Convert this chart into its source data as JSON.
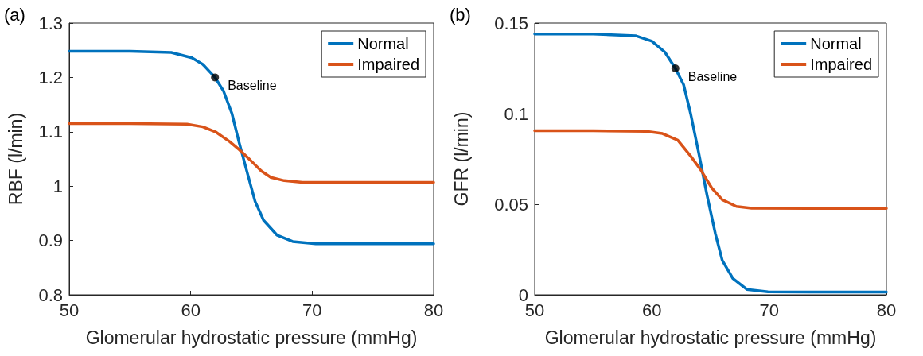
{
  "chart_data": [
    {
      "type": "line",
      "title": "(a)",
      "xlabel": "Glomerular hydrostatic pressure (mmHg)",
      "ylabel": "RBF (l/min)",
      "xlim": [
        50,
        80
      ],
      "xticks": [
        50,
        60,
        70,
        80
      ],
      "ylim": [
        0.8,
        1.3
      ],
      "yticks": [
        0.8,
        0.9,
        1,
        1.1,
        1.2,
        1.3
      ],
      "grid": false,
      "legend": "top right",
      "marker": "none",
      "series": [
        {
          "name": "Normal",
          "color": "#0072bd",
          "x": [
            50,
            55,
            58.4,
            60.1,
            61,
            62,
            62.7,
            63.4,
            64,
            64.7,
            65.3,
            66,
            67.1,
            68.4,
            70.3,
            75,
            80
          ],
          "values": [
            1.248,
            1.248,
            1.246,
            1.236,
            1.224,
            1.2,
            1.175,
            1.133,
            1.079,
            1.021,
            0.972,
            0.937,
            0.91,
            0.898,
            0.894,
            0.894,
            0.894
          ]
        },
        {
          "name": "Impaired",
          "color": "#d95319",
          "x": [
            50,
            55,
            59.7,
            61,
            62.1,
            63.2,
            64,
            64.9,
            65.8,
            66.6,
            67.7,
            69.2,
            75,
            80
          ],
          "values": [
            1.115,
            1.115,
            1.114,
            1.109,
            1.099,
            1.082,
            1.067,
            1.048,
            1.028,
            1.016,
            1.01,
            1.007,
            1.007,
            1.007
          ]
        },
        {
          "type": "scatter",
          "marker": "circle",
          "color": "#000000",
          "x": [
            62
          ],
          "values": [
            1.2
          ]
        }
      ],
      "annotations": [
        {
          "text": "Baseline",
          "x": 62,
          "y": 1.2
        }
      ]
    },
    {
      "type": "line",
      "title": "(b)",
      "xlabel": "Glomerular hydrostatic pressure (mmHg)",
      "ylabel": "GFR (l/min)",
      "xlim": [
        50,
        80
      ],
      "xticks": [
        50,
        60,
        70,
        80
      ],
      "ylim": [
        0,
        0.15
      ],
      "yticks": [
        0,
        0.05,
        0.1,
        0.15
      ],
      "grid": false,
      "legend": "top right",
      "marker": "none",
      "series": [
        {
          "name": "Normal",
          "color": "#0072bd",
          "x": [
            50,
            55,
            58.6,
            60,
            61.1,
            62,
            62.7,
            63.3,
            64,
            64.7,
            65.4,
            66,
            66.9,
            68.1,
            69.9,
            75,
            80
          ],
          "values": [
            0.144,
            0.144,
            0.143,
            0.14,
            0.134,
            0.125,
            0.116,
            0.1,
            0.078,
            0.055,
            0.034,
            0.019,
            0.009,
            0.003,
            0.0016,
            0.0015,
            0.0015
          ]
        },
        {
          "name": "Impaired",
          "color": "#d95319",
          "x": [
            50,
            55,
            59.5,
            60.9,
            62.2,
            63.3,
            64.2,
            65.1,
            66,
            67.2,
            68.5,
            75,
            80
          ],
          "values": [
            0.0906,
            0.0906,
            0.0902,
            0.089,
            0.0854,
            0.0766,
            0.0686,
            0.059,
            0.0525,
            0.0488,
            0.0478,
            0.0477,
            0.0477
          ]
        },
        {
          "type": "scatter",
          "marker": "circle",
          "color": "#000000",
          "x": [
            62
          ],
          "values": [
            0.125
          ]
        }
      ],
      "annotations": [
        {
          "text": "Baseline",
          "x": 62,
          "y": 0.125
        }
      ]
    }
  ]
}
